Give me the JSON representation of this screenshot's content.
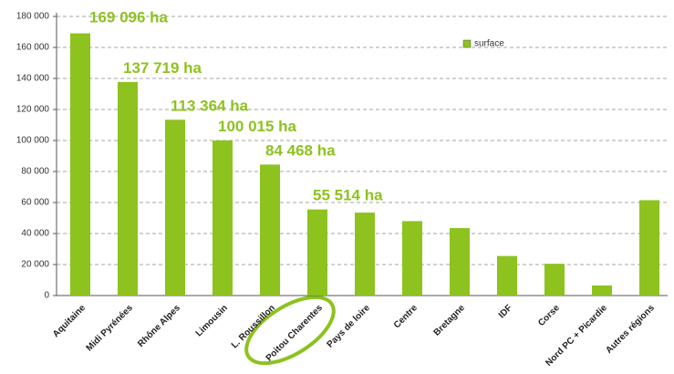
{
  "chart_data": {
    "type": "bar",
    "categories": [
      "Aquitaine",
      "Midi Pyrénées",
      "Rhône Alpes",
      "Limousin",
      "L. Roussillon",
      "Poitou Charentes",
      "Pays de loire",
      "Centre",
      "Bretagne",
      "IDF",
      "Corse",
      "Nord PC + Picardie",
      "Autres régions"
    ],
    "series": [
      {
        "name": "surface",
        "color": "#8dc21f",
        "values": [
          169096,
          137719,
          113364,
          100015,
          84468,
          55514,
          53500,
          48000,
          43500,
          25500,
          20500,
          6500,
          61500
        ],
        "value_labels": [
          "169 096 ha",
          "137 719 ha",
          "113 364 ha",
          "100 015 ha",
          "84 468 ha",
          "55 514 ha",
          null,
          null,
          null,
          null,
          null,
          null,
          null
        ]
      }
    ],
    "ylim": [
      0,
      180000
    ],
    "yticks": [
      0,
      {
        "value": 20000,
        "label": "20 000"
      },
      {
        "value": 40000,
        "label": "40 000"
      },
      {
        "value": 60000,
        "label": "60 000"
      },
      {
        "value": 80000,
        "label": "80 000"
      },
      {
        "value": 100000,
        "label": "100 000"
      },
      {
        "value": 120000,
        "label": "120 000"
      },
      {
        "value": 140000,
        "label": "140 000"
      },
      {
        "value": 160000,
        "label": "160 000"
      },
      {
        "value": 180000,
        "label": "180 000"
      }
    ],
    "grid": true,
    "legend": "top-right"
  }
}
